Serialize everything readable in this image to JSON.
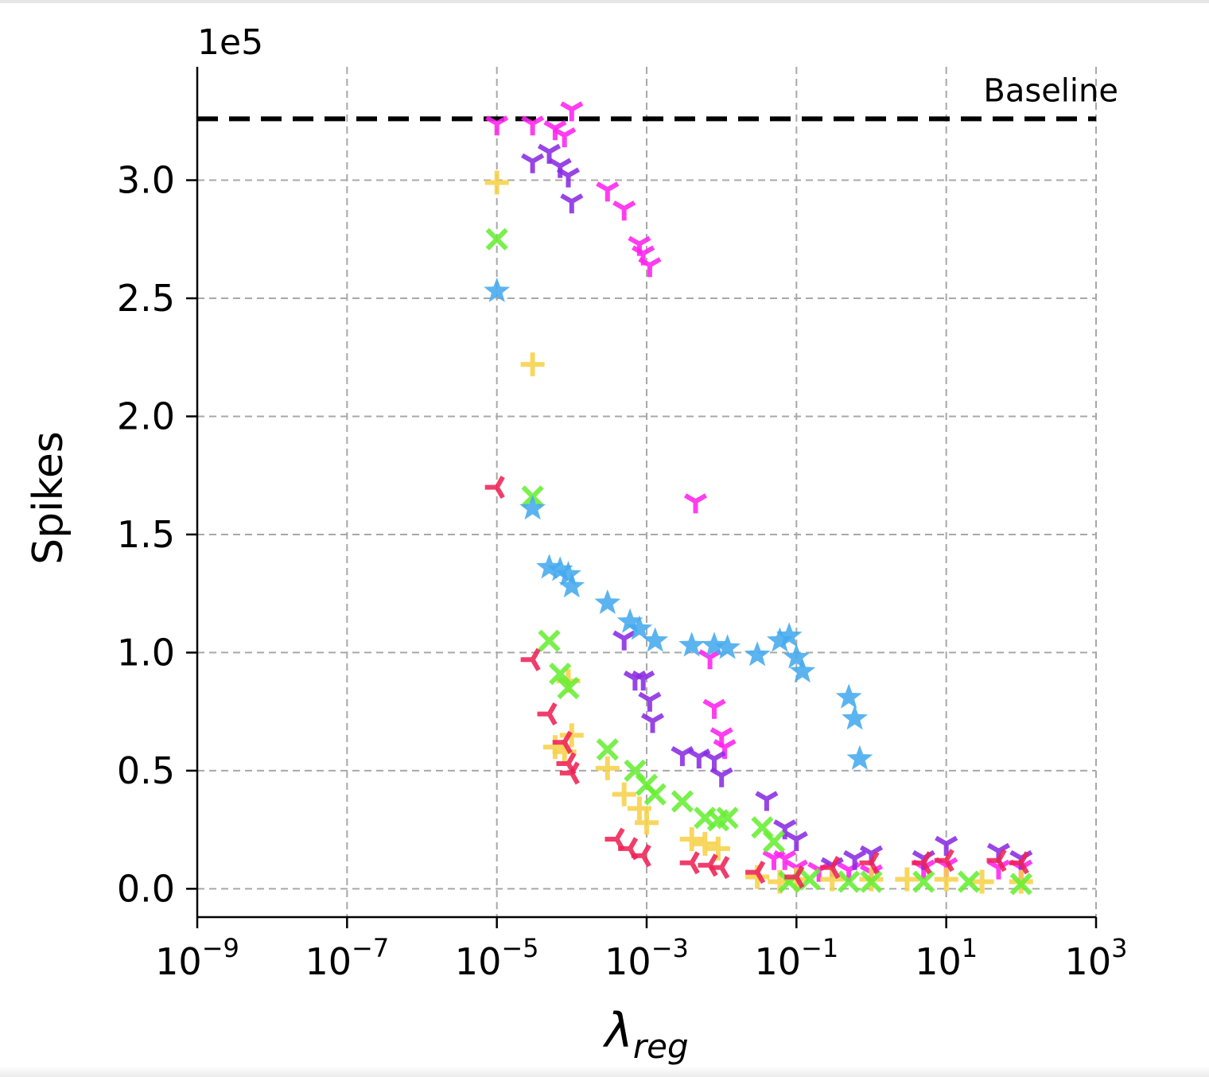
{
  "chart_data": {
    "type": "scatter",
    "xlabel": "λ",
    "xlabel_sub": "reg",
    "ylabel": "Spikes",
    "y_multiplier": "1e5",
    "x_scale": "log",
    "xlim": [
      1e-09,
      1000
    ],
    "ylim": [
      -0.12,
      3.48
    ],
    "x_ticks": [
      {
        "base": "10",
        "exp": "−9"
      },
      {
        "base": "10",
        "exp": "−7"
      },
      {
        "base": "10",
        "exp": "−5"
      },
      {
        "base": "10",
        "exp": "−3"
      },
      {
        "base": "10",
        "exp": "−1"
      },
      {
        "base": "10",
        "exp": "1"
      },
      {
        "base": "10",
        "exp": "3"
      }
    ],
    "y_ticks": [
      "0.0",
      "0.5",
      "1.0",
      "1.5",
      "2.0",
      "2.5",
      "3.0"
    ],
    "grid": true,
    "baseline": {
      "label": "Baseline",
      "value": 3.26
    },
    "series": [
      {
        "color": "#ff22ee",
        "marker": "tri_down",
        "points": [
          [
            1e-05,
            3.24
          ],
          [
            3e-05,
            3.24
          ],
          [
            6e-05,
            3.22
          ],
          [
            8e-05,
            3.19
          ],
          [
            0.0001,
            3.3
          ],
          [
            0.0003,
            2.96
          ],
          [
            0.0005,
            2.88
          ],
          [
            0.0008,
            2.73
          ],
          [
            0.0009,
            2.69
          ],
          [
            0.0011,
            2.64
          ],
          [
            0.0045,
            1.64
          ],
          [
            0.007,
            0.98
          ],
          [
            0.008,
            0.77
          ],
          [
            0.01,
            0.65
          ],
          [
            0.011,
            0.6
          ],
          [
            0.05,
            0.13
          ],
          [
            0.07,
            0.13
          ],
          [
            0.1,
            0.09
          ],
          [
            0.2,
            0.08
          ],
          [
            0.5,
            0.08
          ],
          [
            1,
            0.07
          ],
          [
            5,
            0.09
          ],
          [
            10,
            0.1
          ],
          [
            50,
            0.09
          ],
          [
            100,
            0.09
          ]
        ]
      },
      {
        "color": "#8a2be2",
        "marker": "tri_down",
        "points": [
          [
            3e-05,
            3.08
          ],
          [
            5e-05,
            3.12
          ],
          [
            7e-05,
            3.06
          ],
          [
            9e-05,
            3.02
          ],
          [
            0.0001,
            2.91
          ],
          [
            0.0005,
            1.06
          ],
          [
            0.0007,
            0.89
          ],
          [
            0.0009,
            0.89
          ],
          [
            0.0011,
            0.8
          ],
          [
            0.0012,
            0.71
          ],
          [
            0.003,
            0.57
          ],
          [
            0.005,
            0.56
          ],
          [
            0.008,
            0.55
          ],
          [
            0.01,
            0.48
          ],
          [
            0.04,
            0.38
          ],
          [
            0.07,
            0.26
          ],
          [
            0.1,
            0.21
          ],
          [
            0.3,
            0.1
          ],
          [
            0.6,
            0.13
          ],
          [
            1,
            0.15
          ],
          [
            5,
            0.13
          ],
          [
            10,
            0.19
          ],
          [
            50,
            0.16
          ],
          [
            100,
            0.13
          ]
        ]
      },
      {
        "color": "#f7d14a",
        "marker": "plus",
        "points": [
          [
            1e-05,
            2.99
          ],
          [
            3e-05,
            2.22
          ],
          [
            6e-05,
            0.6
          ],
          [
            8e-05,
            0.58
          ],
          [
            9e-05,
            0.88
          ],
          [
            0.0001,
            0.65
          ],
          [
            0.0003,
            0.51
          ],
          [
            0.0005,
            0.4
          ],
          [
            0.0008,
            0.34
          ],
          [
            0.001,
            0.28
          ],
          [
            0.004,
            0.21
          ],
          [
            0.006,
            0.19
          ],
          [
            0.009,
            0.17
          ],
          [
            0.03,
            0.05
          ],
          [
            0.06,
            0.03
          ],
          [
            0.1,
            0.04
          ],
          [
            0.3,
            0.04
          ],
          [
            1,
            0.04
          ],
          [
            3,
            0.04
          ],
          [
            10,
            0.04
          ],
          [
            30,
            0.03
          ],
          [
            100,
            0.03
          ]
        ]
      },
      {
        "color": "#66ee33",
        "marker": "x",
        "points": [
          [
            1e-05,
            2.75
          ],
          [
            3e-05,
            1.66
          ],
          [
            5e-05,
            1.05
          ],
          [
            7e-05,
            0.91
          ],
          [
            9e-05,
            0.85
          ],
          [
            0.0003,
            0.59
          ],
          [
            0.0007,
            0.5
          ],
          [
            0.001,
            0.44
          ],
          [
            0.0013,
            0.4
          ],
          [
            0.003,
            0.37
          ],
          [
            0.006,
            0.3
          ],
          [
            0.009,
            0.29
          ],
          [
            0.012,
            0.3
          ],
          [
            0.035,
            0.26
          ],
          [
            0.05,
            0.2
          ],
          [
            0.08,
            0.03
          ],
          [
            0.15,
            0.04
          ],
          [
            0.5,
            0.03
          ],
          [
            1,
            0.03
          ],
          [
            5,
            0.03
          ],
          [
            20,
            0.03
          ],
          [
            100,
            0.02
          ]
        ]
      },
      {
        "color": "#44aaee",
        "marker": "star",
        "points": [
          [
            1e-05,
            2.53
          ],
          [
            3e-05,
            1.61
          ],
          [
            5e-05,
            1.36
          ],
          [
            7e-05,
            1.35
          ],
          [
            9e-05,
            1.33
          ],
          [
            0.0001,
            1.28
          ],
          [
            0.0003,
            1.21
          ],
          [
            0.0006,
            1.13
          ],
          [
            0.0008,
            1.1
          ],
          [
            0.0013,
            1.05
          ],
          [
            0.004,
            1.03
          ],
          [
            0.008,
            1.03
          ],
          [
            0.012,
            1.02
          ],
          [
            0.03,
            0.99
          ],
          [
            0.06,
            1.05
          ],
          [
            0.08,
            1.07
          ],
          [
            0.1,
            0.98
          ],
          [
            0.12,
            0.92
          ],
          [
            0.5,
            0.81
          ],
          [
            0.6,
            0.72
          ],
          [
            0.7,
            0.55
          ]
        ]
      },
      {
        "color": "#ee2255",
        "marker": "tri_left",
        "points": [
          [
            1e-05,
            1.7
          ],
          [
            3e-05,
            0.97
          ],
          [
            5e-05,
            0.74
          ],
          [
            8e-05,
            0.62
          ],
          [
            9e-05,
            0.53
          ],
          [
            0.0001,
            0.49
          ],
          [
            0.0004,
            0.21
          ],
          [
            0.0006,
            0.17
          ],
          [
            0.0009,
            0.14
          ],
          [
            0.004,
            0.11
          ],
          [
            0.007,
            0.1
          ],
          [
            0.01,
            0.09
          ],
          [
            0.03,
            0.07
          ],
          [
            0.1,
            0.05
          ],
          [
            0.3,
            0.09
          ],
          [
            1,
            0.11
          ],
          [
            5,
            0.11
          ],
          [
            10,
            0.12
          ],
          [
            50,
            0.12
          ],
          [
            100,
            0.11
          ]
        ]
      }
    ]
  }
}
